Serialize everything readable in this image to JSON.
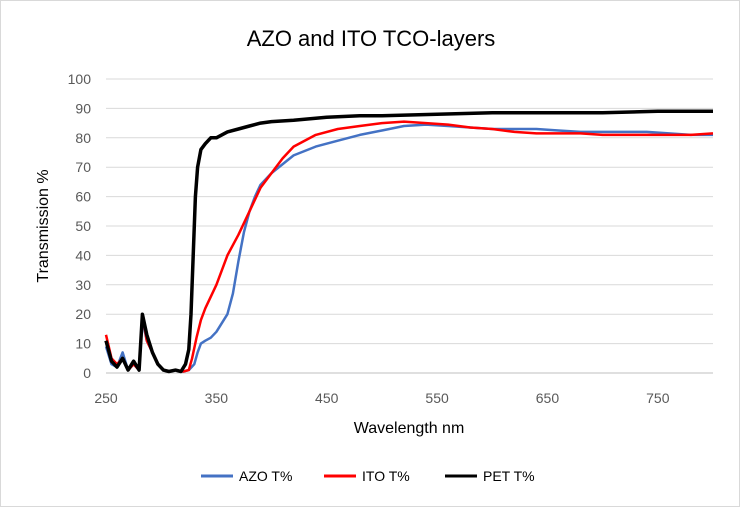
{
  "chart_data": {
    "type": "line",
    "title": "AZO and ITO TCO-layers",
    "xlabel": "Wavelength nm",
    "ylabel": "Transmission %",
    "xlim": [
      250,
      800
    ],
    "ylim": [
      0,
      100
    ],
    "xticks": [
      250,
      350,
      450,
      550,
      650,
      750
    ],
    "yticks": [
      0,
      10,
      20,
      30,
      40,
      50,
      60,
      70,
      80,
      90,
      100
    ],
    "grid": "horizontal",
    "legend_position": "bottom",
    "series": [
      {
        "name": "AZO T%",
        "color": "#4472c4",
        "points": [
          [
            250,
            9
          ],
          [
            255,
            3
          ],
          [
            260,
            2
          ],
          [
            265,
            7
          ],
          [
            270,
            1
          ],
          [
            275,
            3
          ],
          [
            280,
            1
          ],
          [
            283,
            18
          ],
          [
            287,
            11
          ],
          [
            292,
            7
          ],
          [
            297,
            3
          ],
          [
            302,
            1
          ],
          [
            307,
            0.5
          ],
          [
            313,
            1
          ],
          [
            320,
            0.5
          ],
          [
            325,
            1
          ],
          [
            330,
            3
          ],
          [
            333,
            7
          ],
          [
            336,
            10
          ],
          [
            340,
            11
          ],
          [
            345,
            12
          ],
          [
            350,
            14
          ],
          [
            360,
            20
          ],
          [
            365,
            27
          ],
          [
            370,
            38
          ],
          [
            375,
            48
          ],
          [
            380,
            55
          ],
          [
            385,
            60
          ],
          [
            390,
            64
          ],
          [
            400,
            68
          ],
          [
            420,
            74
          ],
          [
            440,
            77
          ],
          [
            460,
            79
          ],
          [
            480,
            81
          ],
          [
            500,
            82.5
          ],
          [
            520,
            84
          ],
          [
            540,
            84.5
          ],
          [
            560,
            84
          ],
          [
            580,
            83.5
          ],
          [
            600,
            83
          ],
          [
            620,
            83
          ],
          [
            640,
            83
          ],
          [
            660,
            82.5
          ],
          [
            680,
            82
          ],
          [
            700,
            82
          ],
          [
            720,
            82
          ],
          [
            740,
            82
          ],
          [
            760,
            81.5
          ],
          [
            780,
            81
          ],
          [
            800,
            81
          ]
        ]
      },
      {
        "name": "ITO T%",
        "color": "#ff0000",
        "points": [
          [
            250,
            13
          ],
          [
            255,
            5
          ],
          [
            260,
            3
          ],
          [
            265,
            5
          ],
          [
            270,
            1
          ],
          [
            275,
            3
          ],
          [
            280,
            1
          ],
          [
            283,
            20
          ],
          [
            287,
            11
          ],
          [
            292,
            7
          ],
          [
            297,
            3
          ],
          [
            302,
            1
          ],
          [
            307,
            0.5
          ],
          [
            313,
            1
          ],
          [
            320,
            0.5
          ],
          [
            325,
            1
          ],
          [
            328,
            5
          ],
          [
            332,
            12
          ],
          [
            336,
            18
          ],
          [
            340,
            22
          ],
          [
            350,
            30
          ],
          [
            360,
            40
          ],
          [
            370,
            47
          ],
          [
            380,
            55
          ],
          [
            390,
            63
          ],
          [
            400,
            68
          ],
          [
            410,
            73
          ],
          [
            420,
            77
          ],
          [
            440,
            81
          ],
          [
            460,
            83
          ],
          [
            480,
            84
          ],
          [
            500,
            85
          ],
          [
            520,
            85.5
          ],
          [
            540,
            85
          ],
          [
            560,
            84.5
          ],
          [
            580,
            83.5
          ],
          [
            600,
            83
          ],
          [
            620,
            82
          ],
          [
            640,
            81.5
          ],
          [
            660,
            81.5
          ],
          [
            680,
            81.5
          ],
          [
            700,
            81
          ],
          [
            720,
            81
          ],
          [
            740,
            81
          ],
          [
            760,
            81
          ],
          [
            780,
            81
          ],
          [
            800,
            81.5
          ]
        ]
      },
      {
        "name": "PET T%",
        "color": "#000000",
        "points": [
          [
            250,
            11
          ],
          [
            255,
            4
          ],
          [
            260,
            2
          ],
          [
            265,
            5
          ],
          [
            270,
            1
          ],
          [
            275,
            4
          ],
          [
            280,
            1
          ],
          [
            283,
            20
          ],
          [
            287,
            13
          ],
          [
            292,
            7
          ],
          [
            297,
            3
          ],
          [
            302,
            1
          ],
          [
            307,
            0.5
          ],
          [
            313,
            1
          ],
          [
            318,
            0.5
          ],
          [
            322,
            3
          ],
          [
            325,
            8
          ],
          [
            327,
            20
          ],
          [
            329,
            40
          ],
          [
            331,
            60
          ],
          [
            333,
            70
          ],
          [
            336,
            76
          ],
          [
            340,
            78
          ],
          [
            345,
            80
          ],
          [
            350,
            80
          ],
          [
            360,
            82
          ],
          [
            370,
            83
          ],
          [
            380,
            84
          ],
          [
            390,
            85
          ],
          [
            400,
            85.5
          ],
          [
            420,
            86
          ],
          [
            450,
            87
          ],
          [
            480,
            87.5
          ],
          [
            500,
            87.5
          ],
          [
            550,
            88
          ],
          [
            600,
            88.5
          ],
          [
            650,
            88.5
          ],
          [
            700,
            88.5
          ],
          [
            750,
            89
          ],
          [
            800,
            89
          ]
        ]
      }
    ]
  }
}
